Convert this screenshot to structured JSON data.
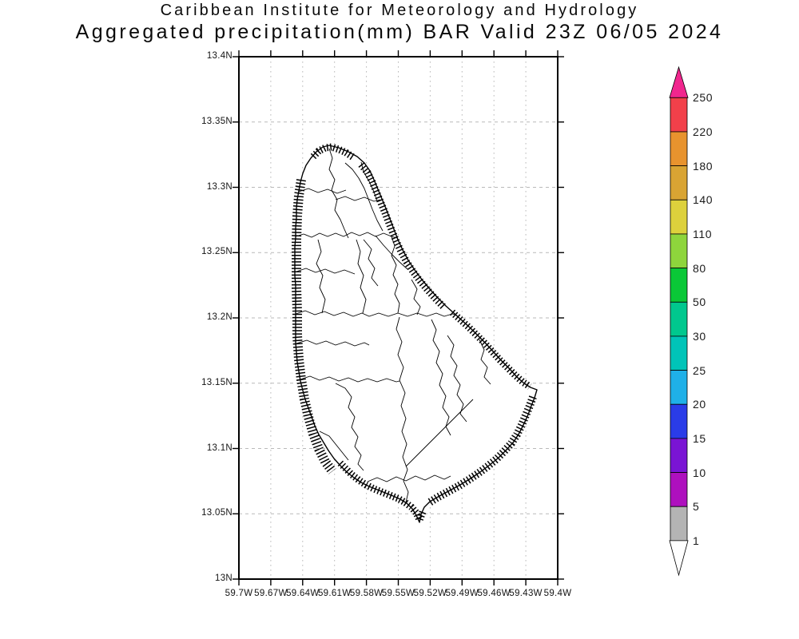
{
  "title": {
    "line1": "Caribbean Institute for Meteorology and Hydrology",
    "line2": "Aggregated precipitation(mm) BAR Valid 23Z 06/05 2024"
  },
  "map": {
    "lat_tick_labels": [
      "13.4N",
      "13.35N",
      "13.3N",
      "13.25N",
      "13.2N",
      "13.15N",
      "13.1N",
      "13.05N",
      "13N"
    ],
    "lon_tick_labels": [
      "59.7W",
      "59.67W",
      "59.64W",
      "59.61W",
      "59.58W",
      "59.55W",
      "59.52W",
      "59.49W",
      "59.46W",
      "59.43W",
      "59.4W"
    ]
  },
  "colorbar": {
    "tick_labels": [
      "250",
      "220",
      "180",
      "140",
      "110",
      "80",
      "50",
      "30",
      "25",
      "20",
      "15",
      "10",
      "5",
      "1"
    ],
    "segment_colors_top_to_bottom": [
      "#f2404a",
      "#e8932e",
      "#d9a433",
      "#ddd13c",
      "#8ed53c",
      "#0ac837",
      "#00c88e",
      "#00c4b8",
      "#1fb0e8",
      "#2a3ce8",
      "#7a14d4",
      "#ae10be",
      "#b4b4b4"
    ],
    "top_arrow_color": "#f1268e",
    "bottom_arrow_color": "#ffffff"
  }
}
